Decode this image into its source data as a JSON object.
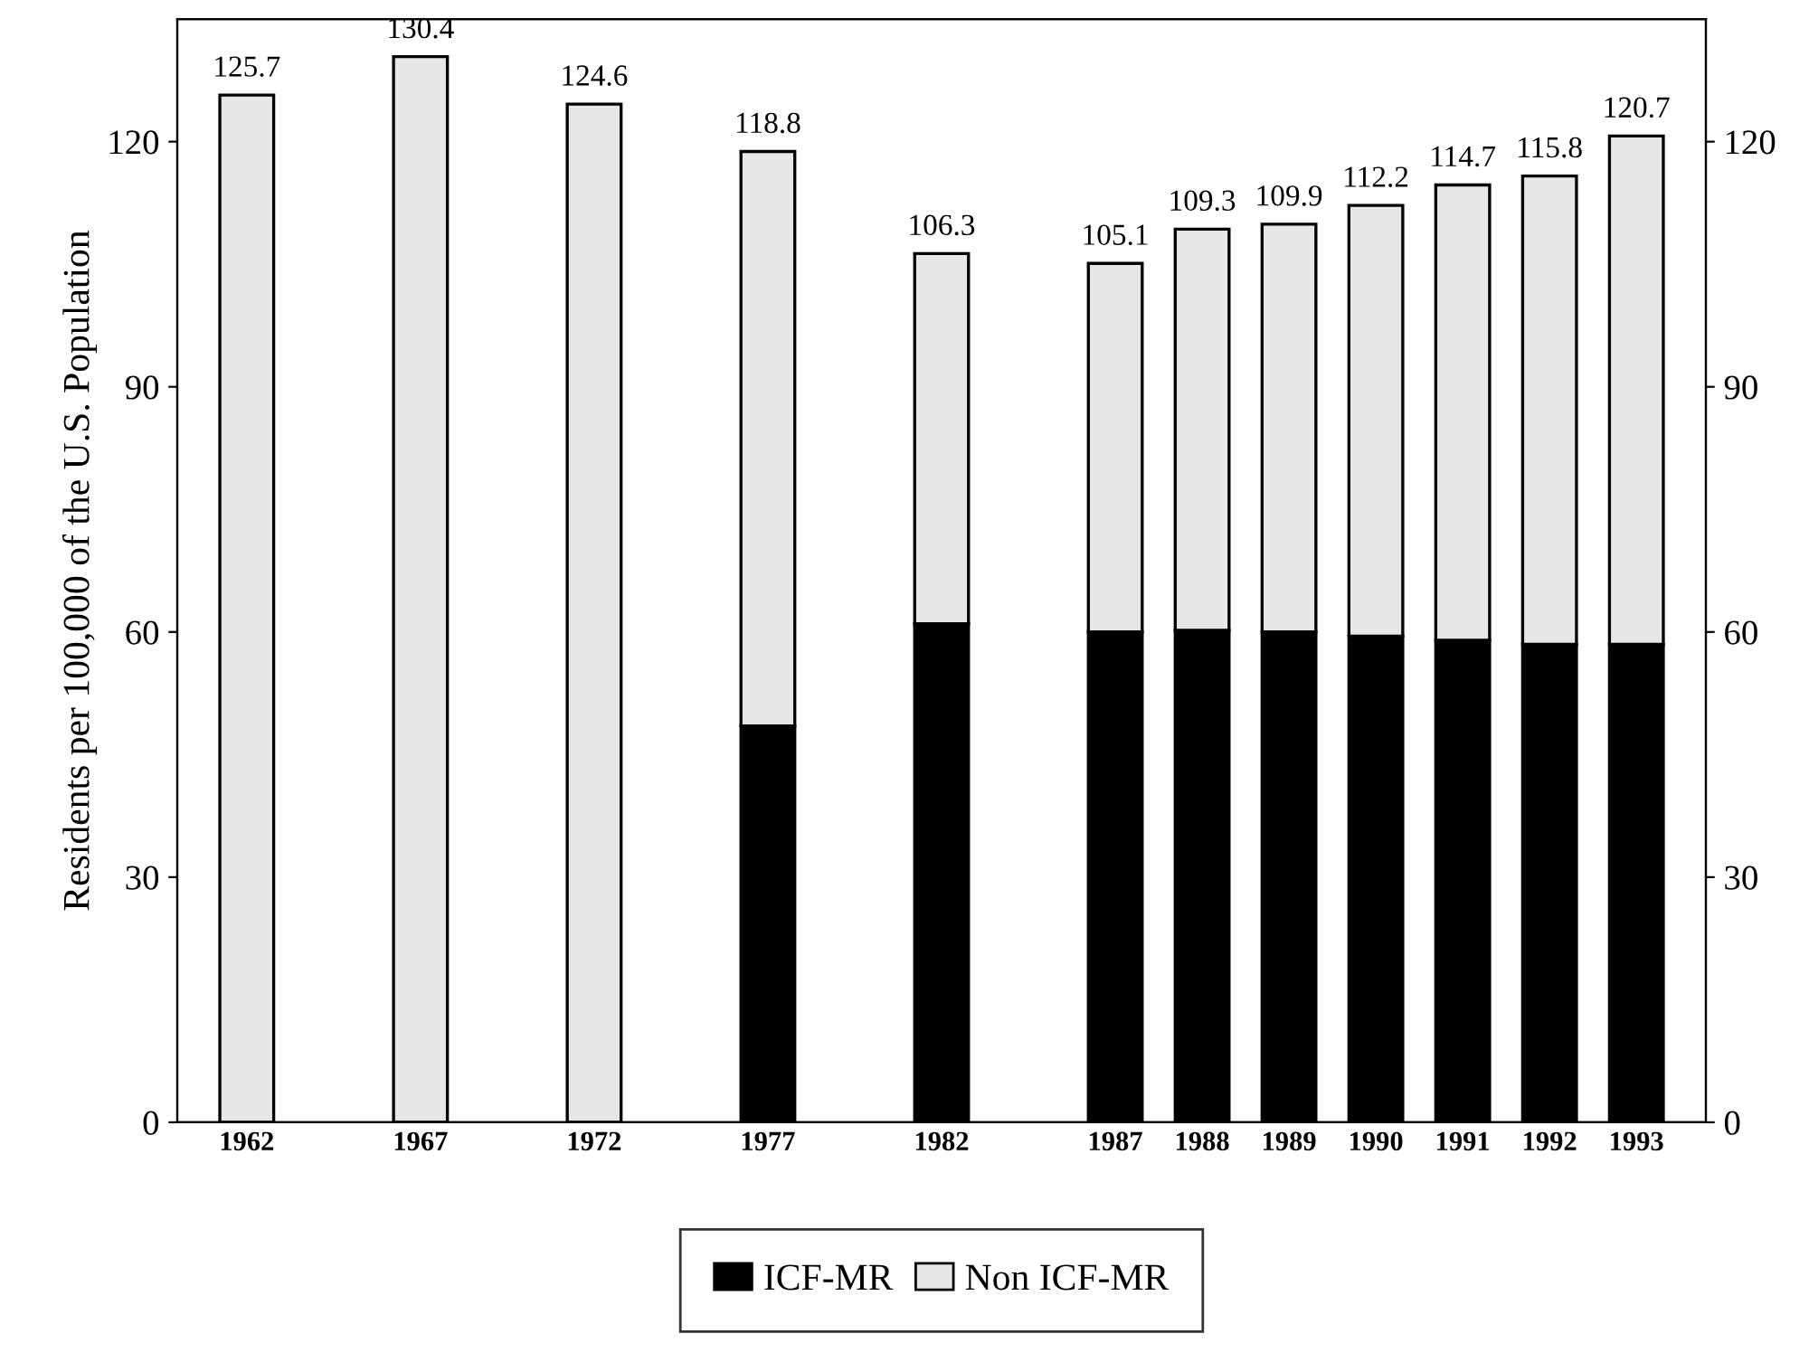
{
  "chart_data": {
    "type": "bar",
    "stacked": true,
    "ylabel": "Residents per 100,000 of the U.S. Population",
    "categories": [
      "1962",
      null,
      "1967",
      null,
      "1972",
      null,
      "1977",
      null,
      "1982",
      null,
      "1987",
      "1988",
      "1989",
      "1990",
      "1991",
      "1992",
      "1993"
    ],
    "series": [
      {
        "name": "ICF-MR",
        "color": "#000000",
        "values": [
          null,
          null,
          null,
          null,
          null,
          null,
          48.5,
          null,
          61,
          null,
          60,
          60.2,
          60,
          59.5,
          59,
          58.5,
          58.5
        ]
      },
      {
        "name": "Non ICF-MR",
        "color": "#e6e6e6",
        "values": [
          125.7,
          null,
          130.4,
          null,
          124.6,
          null,
          70.3,
          null,
          45.3,
          null,
          45.1,
          49.1,
          49.9,
          52.7,
          55.7,
          57.3,
          62.2
        ]
      }
    ],
    "totals": [
      "125.7",
      null,
      "130.4",
      null,
      "124.6",
      null,
      "118.8",
      null,
      "106.3",
      null,
      "105.1",
      "109.3",
      "109.9",
      "112.2",
      "114.7",
      "115.8",
      "120.7"
    ],
    "ylim": [
      0,
      135
    ],
    "yticks": [
      0,
      30,
      60,
      90,
      120
    ],
    "y2lim": [
      0,
      135
    ],
    "y2ticks": [
      0,
      30,
      60,
      90,
      120
    ],
    "legend": "bottom",
    "grid": false
  }
}
